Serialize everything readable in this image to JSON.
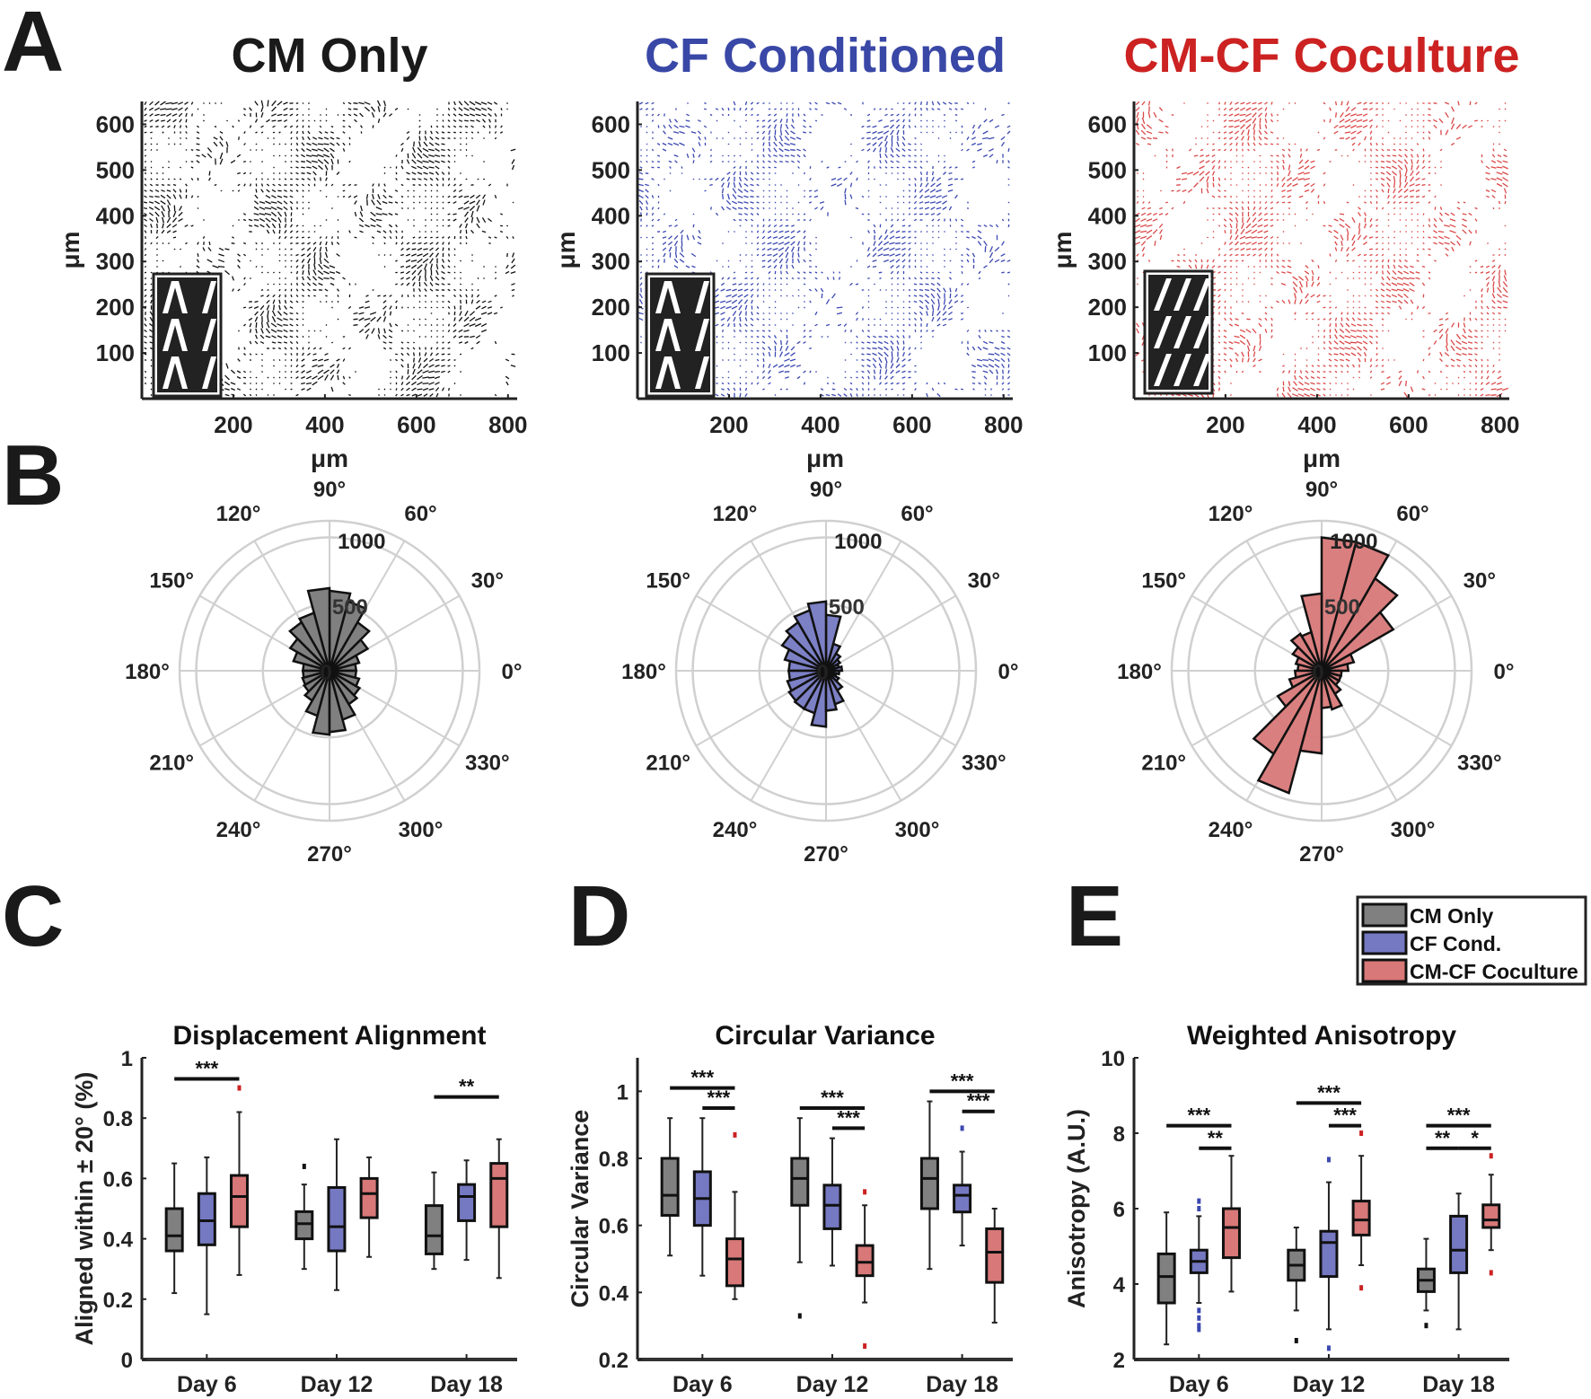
{
  "panel_letters": [
    "A",
    "B",
    "C",
    "D",
    "E"
  ],
  "colors": {
    "gray": "#808080",
    "blue": "#7579c2",
    "red": "#d87878",
    "blue_title": "#3947a6",
    "red_title": "#cc2222",
    "quiver_black": "#111111",
    "quiver_blue": "#3b48b0",
    "quiver_red": "#d42a2a"
  },
  "legend": {
    "items": [
      "CM Only",
      "CF Cond.",
      "CM-CF Coculture"
    ]
  },
  "chart_data": [
    {
      "type": "other",
      "panel": "A",
      "kind": "quiver-displacement-fields",
      "titles": [
        "CM Only",
        "CF Conditioned",
        "CM-CF Coculture"
      ],
      "xlabel": "μm",
      "ylabel": "μm",
      "xlim": [
        0,
        820
      ],
      "ylim": [
        0,
        650
      ],
      "xticks": [
        200,
        400,
        600,
        800
      ],
      "yticks": [
        100,
        200,
        300,
        400,
        500,
        600
      ]
    },
    {
      "type": "bar",
      "subtype": "polar-histogram",
      "panel": "B",
      "angle_labels": [
        "0°",
        "30°",
        "60°",
        "90°",
        "120°",
        "150°",
        "180°",
        "210°",
        "240°",
        "270°",
        "300°",
        "330°"
      ],
      "radial_ticks": [
        "0",
        "500",
        "1000"
      ],
      "rlim": [
        0,
        1125
      ],
      "bin_width_deg": 15,
      "bin_centers_deg": [
        7.5,
        22.5,
        37.5,
        52.5,
        67.5,
        82.5,
        97.5,
        112.5,
        127.5,
        142.5,
        157.5,
        172.5,
        187.5,
        202.5,
        217.5,
        232.5,
        247.5,
        262.5,
        277.5,
        292.5,
        307.5,
        322.5,
        337.5,
        352.5
      ],
      "series": [
        {
          "name": "CM Only",
          "values": [
            200,
            230,
            330,
            420,
            540,
            600,
            620,
            450,
            420,
            340,
            280,
            200,
            200,
            210,
            220,
            260,
            350,
            480,
            460,
            380,
            290,
            260,
            230,
            200
          ]
        },
        {
          "name": "CF Conditioned",
          "values": [
            120,
            100,
            120,
            150,
            210,
            420,
            520,
            470,
            420,
            380,
            320,
            280,
            280,
            300,
            320,
            330,
            330,
            420,
            300,
            260,
            170,
            110,
            80,
            100
          ]
        },
        {
          "name": "CM-CF Coculture",
          "values": [
            200,
            250,
            620,
            800,
            1000,
            1000,
            580,
            300,
            320,
            250,
            200,
            180,
            200,
            250,
            380,
            720,
            950,
            620,
            280,
            300,
            200,
            150,
            150,
            150
          ]
        }
      ]
    },
    {
      "type": "box",
      "panel": "C",
      "title": "Displacement Alignment",
      "ylabel": "Aligned within ± 20° (%)",
      "categories": [
        "Day 6",
        "Day 12",
        "Day 18"
      ],
      "ylim": [
        0,
        1
      ],
      "yticks": [
        "0",
        "0.2",
        "0.4",
        "0.6",
        "0.8",
        "1"
      ],
      "ytick_values": [
        0,
        0.2,
        0.4,
        0.6,
        0.8,
        1
      ],
      "groups": [
        [
          {
            "min": 0.22,
            "q1": 0.36,
            "med": 0.41,
            "q3": 0.5,
            "max": 0.65,
            "out": []
          },
          {
            "min": 0.15,
            "q1": 0.38,
            "med": 0.46,
            "q3": 0.55,
            "max": 0.67,
            "out": []
          },
          {
            "min": 0.28,
            "q1": 0.44,
            "med": 0.54,
            "q3": 0.61,
            "max": 0.82,
            "out": [
              0.9
            ]
          }
        ],
        [
          {
            "min": 0.3,
            "q1": 0.4,
            "med": 0.45,
            "q3": 0.49,
            "max": 0.58,
            "out": [
              0.64
            ]
          },
          {
            "min": 0.23,
            "q1": 0.36,
            "med": 0.44,
            "q3": 0.57,
            "max": 0.73,
            "out": []
          },
          {
            "min": 0.34,
            "q1": 0.47,
            "med": 0.55,
            "q3": 0.6,
            "max": 0.67,
            "out": []
          }
        ],
        [
          {
            "min": 0.3,
            "q1": 0.35,
            "med": 0.41,
            "q3": 0.51,
            "max": 0.62,
            "out": []
          },
          {
            "min": 0.33,
            "q1": 0.46,
            "med": 0.54,
            "q3": 0.58,
            "max": 0.66,
            "out": []
          },
          {
            "min": 0.27,
            "q1": 0.44,
            "med": 0.6,
            "q3": 0.65,
            "max": 0.73,
            "out": []
          }
        ]
      ],
      "significance": [
        {
          "day": 0,
          "from": 0,
          "to": 2,
          "y": 0.93,
          "label": "***"
        },
        {
          "day": 2,
          "from": 0,
          "to": 2,
          "y": 0.87,
          "label": "**"
        }
      ]
    },
    {
      "type": "box",
      "panel": "D",
      "title": "Circular Variance",
      "ylabel": "Circular Variance",
      "categories": [
        "Day 6",
        "Day 12",
        "Day 18"
      ],
      "ylim": [
        0.2,
        1.1
      ],
      "yticks": [
        "0.2",
        "0.4",
        "0.6",
        "0.8",
        "1"
      ],
      "ytick_values": [
        0.2,
        0.4,
        0.6,
        0.8,
        1
      ],
      "groups": [
        [
          {
            "min": 0.51,
            "q1": 0.63,
            "med": 0.69,
            "q3": 0.8,
            "max": 0.92,
            "out": []
          },
          {
            "min": 0.45,
            "q1": 0.6,
            "med": 0.68,
            "q3": 0.76,
            "max": 0.92,
            "out": []
          },
          {
            "min": 0.38,
            "q1": 0.42,
            "med": 0.5,
            "q3": 0.56,
            "max": 0.7,
            "out": [
              0.87
            ]
          }
        ],
        [
          {
            "min": 0.49,
            "q1": 0.66,
            "med": 0.74,
            "q3": 0.8,
            "max": 0.92,
            "out": [
              0.33
            ]
          },
          {
            "min": 0.48,
            "q1": 0.59,
            "med": 0.66,
            "q3": 0.72,
            "max": 0.86,
            "out": []
          },
          {
            "min": 0.37,
            "q1": 0.45,
            "med": 0.49,
            "q3": 0.54,
            "max": 0.66,
            "out": [
              0.7,
              0.24
            ]
          }
        ],
        [
          {
            "min": 0.47,
            "q1": 0.65,
            "med": 0.74,
            "q3": 0.8,
            "max": 0.97,
            "out": []
          },
          {
            "min": 0.54,
            "q1": 0.64,
            "med": 0.69,
            "q3": 0.72,
            "max": 0.82,
            "out": [
              0.89
            ]
          },
          {
            "min": 0.31,
            "q1": 0.43,
            "med": 0.52,
            "q3": 0.59,
            "max": 0.65,
            "out": []
          }
        ]
      ],
      "significance": [
        {
          "day": 0,
          "from": 0,
          "to": 2,
          "y": 1.01,
          "label": "***"
        },
        {
          "day": 0,
          "from": 1,
          "to": 2,
          "y": 0.95,
          "label": "***"
        },
        {
          "day": 1,
          "from": 0,
          "to": 2,
          "y": 0.95,
          "label": "***"
        },
        {
          "day": 1,
          "from": 1,
          "to": 2,
          "y": 0.89,
          "label": "***"
        },
        {
          "day": 2,
          "from": 0,
          "to": 2,
          "y": 1.0,
          "label": "***"
        },
        {
          "day": 2,
          "from": 1,
          "to": 2,
          "y": 0.94,
          "label": "***"
        }
      ]
    },
    {
      "type": "box",
      "panel": "E",
      "title": "Weighted Anisotropy",
      "ylabel": "Anisotropy (A.U.)",
      "categories": [
        "Day 6",
        "Day 12",
        "Day 18"
      ],
      "ylim": [
        2,
        10
      ],
      "yticks": [
        "2",
        "4",
        "6",
        "8",
        "10"
      ],
      "ytick_values": [
        2,
        4,
        6,
        8,
        10
      ],
      "groups": [
        [
          {
            "min": 2.4,
            "q1": 3.5,
            "med": 4.2,
            "q3": 4.8,
            "max": 5.9,
            "out": []
          },
          {
            "min": 3.5,
            "q1": 4.3,
            "med": 4.6,
            "q3": 4.9,
            "max": 5.8,
            "out": [
              6.2,
              6.0,
              3.3,
              3.1,
              2.9,
              2.8
            ]
          },
          {
            "min": 3.8,
            "q1": 4.7,
            "med": 5.5,
            "q3": 6.0,
            "max": 7.4,
            "out": []
          }
        ],
        [
          {
            "min": 3.3,
            "q1": 4.1,
            "med": 4.5,
            "q3": 4.9,
            "max": 5.5,
            "out": [
              2.5
            ]
          },
          {
            "min": 2.8,
            "q1": 4.2,
            "med": 5.1,
            "q3": 5.4,
            "max": 6.7,
            "out": [
              7.3,
              2.3
            ]
          },
          {
            "min": 4.5,
            "q1": 5.3,
            "med": 5.7,
            "q3": 6.2,
            "max": 7.4,
            "out": [
              8.0,
              3.9
            ]
          }
        ],
        [
          {
            "min": 3.3,
            "q1": 3.8,
            "med": 4.1,
            "q3": 4.4,
            "max": 5.2,
            "out": [
              2.9
            ]
          },
          {
            "min": 2.8,
            "q1": 4.3,
            "med": 4.9,
            "q3": 5.8,
            "max": 6.4,
            "out": []
          },
          {
            "min": 4.9,
            "q1": 5.5,
            "med": 5.7,
            "q3": 6.1,
            "max": 6.9,
            "out": [
              7.4,
              4.3
            ]
          }
        ]
      ],
      "significance": [
        {
          "day": 0,
          "from": 0,
          "to": 2,
          "y": 8.2,
          "label": "***"
        },
        {
          "day": 0,
          "from": 1,
          "to": 2,
          "y": 7.6,
          "label": "**"
        },
        {
          "day": 1,
          "from": 0,
          "to": 2,
          "y": 8.8,
          "label": "***"
        },
        {
          "day": 1,
          "from": 1,
          "to": 2,
          "y": 8.2,
          "label": "***"
        },
        {
          "day": 2,
          "from": 0,
          "to": 2,
          "y": 8.2,
          "label": "***"
        },
        {
          "day": 2,
          "from": 0,
          "to": 1,
          "y": 7.6,
          "label": "**"
        },
        {
          "day": 2,
          "from": 1,
          "to": 2,
          "y": 7.6,
          "label": "*"
        }
      ]
    }
  ]
}
